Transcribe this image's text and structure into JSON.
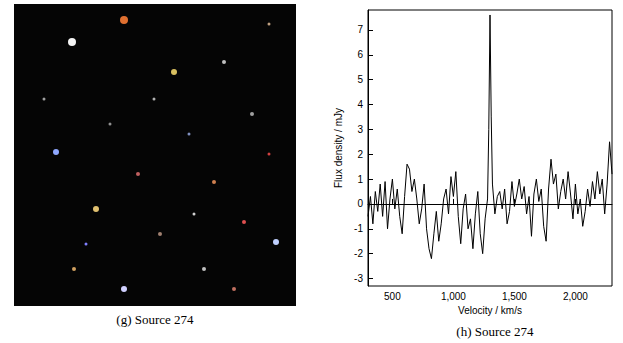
{
  "image_panel": {
    "caption": "(g) Source 274"
  },
  "chart_data": {
    "type": "line",
    "caption": "(h) Source 274",
    "x_label": "Velocity / km/s",
    "y_label": "Flux density / mJy",
    "color": "#000000",
    "grid": false,
    "xlim": [
      300,
      2300
    ],
    "xticks": [
      500,
      1000,
      1500,
      2000
    ],
    "ylim": [
      -3.3,
      7.8
    ],
    "yticks": [
      -3,
      -2,
      -1,
      0,
      1,
      2,
      3,
      4,
      5,
      6,
      7
    ],
    "x": [
      300,
      320,
      340,
      360,
      380,
      400,
      420,
      440,
      460,
      480,
      500,
      520,
      540,
      560,
      580,
      600,
      620,
      640,
      660,
      680,
      700,
      720,
      740,
      760,
      780,
      800,
      820,
      840,
      860,
      880,
      900,
      920,
      940,
      960,
      980,
      1000,
      1020,
      1040,
      1060,
      1080,
      1100,
      1120,
      1140,
      1160,
      1180,
      1200,
      1220,
      1240,
      1260,
      1280,
      1290,
      1300,
      1310,
      1320,
      1340,
      1360,
      1380,
      1400,
      1420,
      1440,
      1460,
      1480,
      1500,
      1520,
      1540,
      1560,
      1580,
      1600,
      1620,
      1640,
      1660,
      1680,
      1700,
      1720,
      1740,
      1760,
      1780,
      1800,
      1820,
      1840,
      1860,
      1880,
      1900,
      1920,
      1940,
      1960,
      1980,
      2000,
      2020,
      2040,
      2060,
      2080,
      2100,
      2120,
      2140,
      2160,
      2180,
      2200,
      2220,
      2240,
      2260,
      2280,
      2300
    ],
    "values": [
      -0.5,
      0.3,
      -0.8,
      0.5,
      -0.3,
      0.8,
      -0.5,
      0.9,
      -1.0,
      0.2,
      1.0,
      -0.2,
      0.6,
      -0.5,
      -1.2,
      0.3,
      1.6,
      1.4,
      0.5,
      1.0,
      0.2,
      -0.8,
      -0.2,
      0.8,
      -1.0,
      -1.8,
      -2.2,
      -1.2,
      -0.3,
      -1.5,
      -0.8,
      0.2,
      0.6,
      -0.4,
      1.1,
      0.3,
      1.3,
      -0.5,
      -1.6,
      -0.2,
      0.4,
      -1.0,
      -0.6,
      -1.8,
      -0.4,
      0.5,
      -1.2,
      -2.0,
      -0.6,
      0.2,
      3.0,
      7.6,
      3.5,
      0.8,
      -0.4,
      0.3,
      0.5,
      -0.2,
      0.6,
      -0.8,
      -0.3,
      0.9,
      -0.1,
      0.4,
      1.0,
      0.2,
      0.7,
      -0.4,
      0.3,
      -1.3,
      0.4,
      1.0,
      0.1,
      0.6,
      -0.9,
      -1.5,
      0.6,
      1.8,
      0.8,
      1.2,
      -0.2,
      0.5,
      1.0,
      0.2,
      1.3,
      0.4,
      -0.6,
      0.8,
      -0.4,
      0.2,
      -0.9,
      -0.3,
      0.6,
      -0.1,
      0.9,
      0.2,
      1.3,
      0.4,
      1.0,
      -0.4,
      0.8,
      2.5,
      1.2
    ]
  }
}
